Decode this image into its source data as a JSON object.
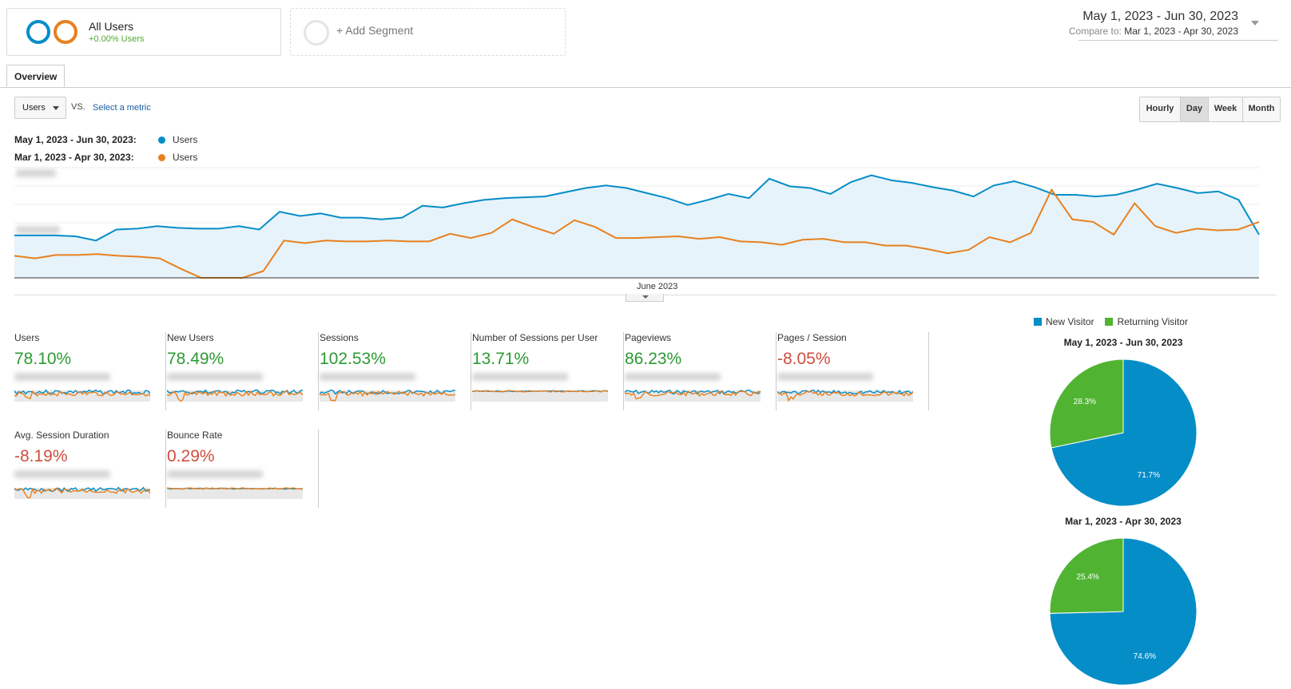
{
  "segments": {
    "all_users": {
      "title": "All Users",
      "subtitle": "+0.00% Users"
    },
    "add_segment": {
      "label": "+ Add Segment"
    }
  },
  "date_range": {
    "main": "May 1, 2023 - Jun 30, 2023",
    "compare_label": "Compare to:",
    "compare_range": "Mar 1, 2023 - Apr 30, 2023"
  },
  "tabs": [
    {
      "label": "Overview"
    }
  ],
  "metric_selector": {
    "selected": "Users",
    "vs_label": "VS.",
    "select_metric_label": "Select a metric"
  },
  "intervals": [
    {
      "label": "Hourly",
      "active": false
    },
    {
      "label": "Day",
      "active": true
    },
    {
      "label": "Week",
      "active": false
    },
    {
      "label": "Month",
      "active": false
    }
  ],
  "legend": [
    {
      "range": "May 1, 2023 - Jun 30, 2023:",
      "series": "Users",
      "color": "#058dc7"
    },
    {
      "range": "Mar 1, 2023 - Apr 30, 2023:",
      "series": "Users",
      "color": "#e8801f"
    }
  ],
  "chart_data": [
    {
      "type": "area",
      "xlabel": "June 2023",
      "series": [
        {
          "name": "Users",
          "color": "#058dc7",
          "values": [
            5.0,
            5.0,
            5.0,
            4.9,
            4.4,
            5.7,
            5.8,
            6.1,
            5.9,
            5.8,
            5.8,
            6.1,
            5.7,
            7.8,
            7.3,
            7.6,
            7.1,
            7.1,
            6.9,
            7.1,
            8.5,
            8.3,
            8.8,
            9.2,
            9.4,
            9.5,
            9.6,
            10.1,
            10.6,
            10.9,
            10.6,
            10.0,
            9.4,
            8.6,
            9.2,
            9.9,
            9.4,
            11.7,
            10.8,
            10.6,
            9.9,
            11.3,
            12.1,
            11.5,
            11.2,
            10.7,
            10.3,
            9.6,
            10.9,
            11.4,
            10.7,
            9.8,
            9.8,
            9.6,
            9.8,
            10.4,
            11.1,
            10.6,
            10.0,
            10.2,
            9.2,
            5.1
          ]
        },
        {
          "name": "Users",
          "color": "#e8801f",
          "values": [
            2.6,
            2.3,
            2.7,
            2.7,
            2.8,
            2.6,
            2.5,
            2.3,
            1.1,
            0.0,
            0.0,
            0.0,
            0.8,
            4.4,
            4.1,
            4.4,
            4.3,
            4.3,
            4.4,
            4.3,
            4.3,
            5.2,
            4.7,
            5.3,
            6.9,
            6.0,
            5.2,
            6.8,
            6.0,
            4.7,
            4.7,
            4.8,
            4.9,
            4.6,
            4.8,
            4.3,
            4.2,
            3.9,
            4.5,
            4.6,
            4.2,
            4.2,
            3.8,
            3.8,
            3.4,
            2.9,
            3.3,
            4.8,
            4.2,
            5.3,
            10.4,
            6.9,
            6.6,
            5.1,
            8.8,
            6.1,
            5.3,
            5.8,
            5.6,
            5.7,
            6.6
          ]
        }
      ]
    },
    {
      "type": "pie",
      "title": "May 1, 2023 - Jun 30, 2023",
      "series": [
        {
          "name": "New Visitor",
          "value": 71.7,
          "label": "71.7%",
          "color": "#058dc7"
        },
        {
          "name": "Returning Visitor",
          "value": 28.3,
          "label": "28.3%",
          "color": "#50b432"
        }
      ]
    },
    {
      "type": "pie",
      "title": "Mar 1, 2023 - Apr 30, 2023",
      "series": [
        {
          "name": "New Visitor",
          "value": 74.6,
          "label": "74.6%",
          "color": "#058dc7"
        },
        {
          "name": "Returning Visitor",
          "value": 25.4,
          "label": "25.4%",
          "color": "#50b432"
        }
      ]
    }
  ],
  "scorecards": [
    {
      "label": "Users",
      "value": "78.10%",
      "trend": "positive"
    },
    {
      "label": "New Users",
      "value": "78.49%",
      "trend": "positive"
    },
    {
      "label": "Sessions",
      "value": "102.53%",
      "trend": "positive"
    },
    {
      "label": "Number of Sessions per User",
      "value": "13.71%",
      "trend": "positive"
    },
    {
      "label": "Pageviews",
      "value": "86.23%",
      "trend": "positive"
    },
    {
      "label": "Pages / Session",
      "value": "-8.05%",
      "trend": "negative"
    },
    {
      "label": "Avg. Session Duration",
      "value": "-8.19%",
      "trend": "negative"
    },
    {
      "label": "Bounce Rate",
      "value": "0.29%",
      "trend": "negative"
    }
  ],
  "pie_legend": [
    {
      "label": "New Visitor",
      "color": "#058dc7"
    },
    {
      "label": "Returning Visitor",
      "color": "#50b432"
    }
  ],
  "colors": {
    "blue": "#058dc7",
    "orange": "#e8801f",
    "green": "#50b432",
    "positive": "#2c9a33",
    "negative": "#cf4d3f"
  }
}
